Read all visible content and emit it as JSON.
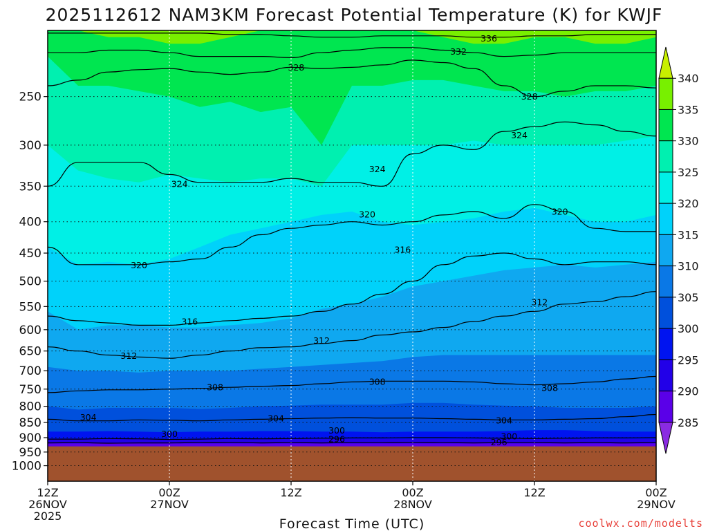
{
  "chart_data": {
    "type": "heatmap",
    "title": "2025112612 NAM3KM Forecast Potential Temperature (K) for KWJF",
    "xlabel": "Forecast Time (UTC)",
    "ylabel": "",
    "y_scale": "log",
    "y_reversed": true,
    "ylim": [
      195,
      1060
    ],
    "y_ticks": [
      "250",
      "300",
      "350",
      "400",
      "450",
      "500",
      "550",
      "600",
      "650",
      "700",
      "750",
      "800",
      "850",
      "900",
      "950",
      "1000"
    ],
    "x_ticks": [
      {
        "hours": 0,
        "line1": "12Z",
        "line2": "26NOV",
        "line3": "2025"
      },
      {
        "hours": 12,
        "line1": "00Z",
        "line2": "27NOV",
        "line3": ""
      },
      {
        "hours": 24,
        "line1": "12Z",
        "line2": "",
        "line3": ""
      },
      {
        "hours": 36,
        "line1": "00Z",
        "line2": "28NOV",
        "line3": ""
      },
      {
        "hours": 48,
        "line1": "12Z",
        "line2": "",
        "line3": ""
      },
      {
        "hours": 60,
        "line1": "00Z",
        "line2": "29NOV",
        "line3": ""
      }
    ],
    "xlim_hours": [
      0,
      60
    ],
    "ground_pressure_hPa": 930,
    "grid": true,
    "colorbar": {
      "position": "right",
      "ticks": [
        "285",
        "290",
        "295",
        "300",
        "305",
        "310",
        "315",
        "320",
        "325",
        "330",
        "335",
        "340"
      ],
      "colors": [
        "#8a2be2",
        "#5a00e8",
        "#2200e8",
        "#0014f0",
        "#0050dc",
        "#0a78e6",
        "#0fa8f0",
        "#00d2fa",
        "#00f0e6",
        "#00f0b0",
        "#00e650",
        "#78f000",
        "#c8f000"
      ]
    },
    "filled_band_edges_K": [
      285,
      290,
      295,
      300,
      305,
      310,
      315,
      320,
      325,
      330,
      335,
      340
    ],
    "field_columns_hours": [
      0,
      3,
      6,
      9,
      12,
      15,
      18,
      21,
      24,
      27,
      30,
      33,
      36,
      39,
      42,
      45,
      48,
      51,
      54,
      57,
      60
    ],
    "field_profiles": [
      {
        "theta_K": [
          290,
          295,
          300,
          305,
          310,
          315,
          320,
          325,
          330,
          335
        ],
        "pressure_hPa": [
          920,
          905,
          880,
          800,
          690,
          560,
          440,
          300,
          215,
          190
        ]
      },
      {
        "theta_K": [
          290,
          295,
          300,
          305,
          310,
          315,
          320,
          325,
          330,
          335
        ],
        "pressure_hPa": [
          920,
          905,
          880,
          810,
          700,
          600,
          470,
          330,
          240,
          195
        ]
      },
      {
        "theta_K": [
          290,
          295,
          300,
          305,
          310,
          315,
          320,
          325,
          330,
          335
        ],
        "pressure_hPa": [
          920,
          905,
          878,
          805,
          700,
          590,
          465,
          340,
          240,
          200
        ]
      },
      {
        "theta_K": [
          290,
          295,
          300,
          305,
          310,
          315,
          320,
          325,
          330,
          335
        ],
        "pressure_hPa": [
          920,
          905,
          880,
          805,
          705,
          590,
          470,
          345,
          245,
          200
        ]
      },
      {
        "theta_K": [
          290,
          295,
          300,
          305,
          310,
          315,
          320,
          325,
          330,
          335
        ],
        "pressure_hPa": [
          920,
          905,
          882,
          805,
          700,
          595,
          460,
          335,
          250,
          205
        ]
      },
      {
        "theta_K": [
          290,
          295,
          300,
          305,
          310,
          315,
          320,
          325,
          330,
          335
        ],
        "pressure_hPa": [
          920,
          905,
          880,
          808,
          700,
          595,
          440,
          340,
          260,
          205
        ]
      },
      {
        "theta_K": [
          290,
          295,
          300,
          305,
          310,
          315,
          320,
          325,
          330,
          335
        ],
        "pressure_hPa": [
          920,
          905,
          880,
          805,
          700,
          590,
          420,
          345,
          255,
          200
        ]
      },
      {
        "theta_K": [
          290,
          295,
          300,
          305,
          310,
          315,
          320,
          325,
          330,
          335
        ],
        "pressure_hPa": [
          920,
          905,
          878,
          800,
          695,
          585,
          410,
          340,
          265,
          195
        ]
      },
      {
        "theta_K": [
          290,
          295,
          300,
          305,
          310,
          315,
          320,
          325,
          330,
          335
        ],
        "pressure_hPa": [
          920,
          905,
          878,
          798,
          690,
          575,
          400,
          340,
          260,
          195
        ]
      },
      {
        "theta_K": [
          290,
          295,
          300,
          305,
          310,
          315,
          320,
          325,
          330,
          335
        ],
        "pressure_hPa": [
          920,
          905,
          880,
          795,
          685,
          555,
          390,
          350,
          300,
          190
        ]
      },
      {
        "theta_K": [
          290,
          295,
          300,
          305,
          310,
          315,
          320,
          325,
          330,
          335
        ],
        "pressure_hPa": [
          920,
          905,
          880,
          795,
          680,
          545,
          385,
          300,
          240,
          190
        ]
      },
      {
        "theta_K": [
          290,
          295,
          300,
          305,
          310,
          315,
          320,
          325,
          330,
          335
        ],
        "pressure_hPa": [
          920,
          905,
          882,
          795,
          675,
          530,
          400,
          300,
          240,
          190
        ]
      },
      {
        "theta_K": [
          290,
          295,
          300,
          305,
          310,
          315,
          320,
          325,
          330,
          335
        ],
        "pressure_hPa": [
          920,
          905,
          880,
          790,
          665,
          510,
          405,
          300,
          235,
          195
        ]
      },
      {
        "theta_K": [
          290,
          295,
          300,
          305,
          310,
          315,
          320,
          325,
          330,
          335
        ],
        "pressure_hPa": [
          920,
          905,
          880,
          790,
          660,
          500,
          400,
          300,
          235,
          200
        ]
      },
      {
        "theta_K": [
          290,
          295,
          300,
          305,
          310,
          315,
          320,
          325,
          330,
          335
        ],
        "pressure_hPa": [
          920,
          905,
          880,
          795,
          660,
          490,
          395,
          295,
          240,
          205
        ]
      },
      {
        "theta_K": [
          290,
          295,
          300,
          305,
          310,
          315,
          320,
          325,
          330,
          335
        ],
        "pressure_hPa": [
          920,
          905,
          878,
          798,
          660,
          480,
          385,
          300,
          245,
          205
        ]
      },
      {
        "theta_K": [
          290,
          295,
          300,
          305,
          310,
          315,
          320,
          325,
          330,
          335
        ],
        "pressure_hPa": [
          920,
          905,
          875,
          800,
          660,
          475,
          380,
          300,
          245,
          200
        ]
      },
      {
        "theta_K": [
          290,
          295,
          300,
          305,
          310,
          315,
          320,
          325,
          330,
          335
        ],
        "pressure_hPa": [
          920,
          905,
          875,
          805,
          660,
          470,
          390,
          300,
          250,
          200
        ]
      },
      {
        "theta_K": [
          290,
          295,
          300,
          305,
          310,
          315,
          320,
          325,
          330,
          335
        ],
        "pressure_hPa": [
          920,
          905,
          878,
          805,
          660,
          475,
          400,
          300,
          245,
          205
        ]
      },
      {
        "theta_K": [
          290,
          295,
          300,
          305,
          310,
          315,
          320,
          325,
          330,
          335
        ],
        "pressure_hPa": [
          920,
          905,
          880,
          805,
          660,
          470,
          400,
          295,
          245,
          205
        ]
      },
      {
        "theta_K": [
          290,
          295,
          300,
          305,
          310,
          315,
          320,
          325,
          330,
          335
        ],
        "pressure_hPa": [
          920,
          905,
          880,
          800,
          660,
          465,
          390,
          290,
          240,
          200
        ]
      }
    ],
    "contour_interval_K": 4,
    "contour_lines": [
      {
        "theta_K": 296,
        "pressure_hPa": [
          918,
          917,
          919,
          918,
          918,
          917,
          916,
          918,
          917,
          918,
          917,
          917,
          916,
          917,
          918,
          917,
          917,
          918,
          917,
          918,
          917
        ]
      },
      {
        "theta_K": 300,
        "pressure_hPa": [
          905,
          905,
          903,
          904,
          906,
          905,
          903,
          904,
          903,
          902,
          901,
          901,
          900,
          900,
          901,
          902,
          903,
          902,
          901,
          901,
          900
        ]
      },
      {
        "theta_K": 304,
        "pressure_hPa": [
          840,
          845,
          845,
          842,
          843,
          845,
          842,
          840,
          838,
          836,
          835,
          836,
          836,
          838,
          840,
          842,
          842,
          840,
          838,
          832,
          825
        ]
      },
      {
        "theta_K": 308,
        "pressure_hPa": [
          760,
          755,
          752,
          752,
          750,
          748,
          745,
          742,
          740,
          735,
          730,
          728,
          728,
          728,
          730,
          735,
          738,
          735,
          730,
          722,
          715
        ]
      },
      {
        "theta_K": 312,
        "pressure_hPa": [
          640,
          650,
          660,
          665,
          668,
          660,
          650,
          642,
          640,
          632,
          625,
          612,
          605,
          595,
          582,
          570,
          560,
          545,
          540,
          530,
          520
        ]
      },
      {
        "theta_K": 316,
        "pressure_hPa": [
          570,
          580,
          585,
          590,
          590,
          585,
          580,
          575,
          570,
          560,
          545,
          525,
          500,
          470,
          455,
          450,
          460,
          470,
          465,
          465,
          470
        ]
      },
      {
        "theta_K": 320,
        "pressure_hPa": [
          440,
          470,
          470,
          470,
          465,
          460,
          440,
          420,
          410,
          405,
          400,
          405,
          400,
          390,
          385,
          395,
          375,
          385,
          410,
          415,
          415
        ]
      },
      {
        "theta_K": 324,
        "pressure_hPa": [
          350,
          320,
          320,
          320,
          335,
          345,
          345,
          345,
          340,
          345,
          345,
          350,
          310,
          300,
          305,
          285,
          280,
          275,
          278,
          285,
          290
        ]
      },
      {
        "theta_K": 328,
        "pressure_hPa": [
          240,
          235,
          228,
          226,
          225,
          228,
          230,
          228,
          224,
          225,
          224,
          222,
          218,
          220,
          225,
          240,
          250,
          245,
          240,
          240,
          242
        ]
      },
      {
        "theta_K": 332,
        "pressure_hPa": [
          212,
          212,
          210,
          210,
          212,
          215,
          215,
          215,
          216,
          212,
          210,
          208,
          208,
          210,
          212,
          215,
          214,
          212,
          212,
          212,
          212
        ]
      },
      {
        "theta_K": 336,
        "pressure_hPa": [
          197,
          197,
          197,
          197,
          197,
          197,
          198,
          198,
          199,
          200,
          200,
          199,
          199,
          199,
          200,
          200,
          199,
          199,
          198,
          198,
          198
        ]
      }
    ],
    "contour_labels": [
      {
        "text": "336",
        "hours": 43.5,
        "pressure_hPa": 201
      },
      {
        "text": "332",
        "hours": 40.5,
        "pressure_hPa": 211
      },
      {
        "text": "328",
        "hours": 24.5,
        "pressure_hPa": 224
      },
      {
        "text": "328",
        "hours": 47.5,
        "pressure_hPa": 250
      },
      {
        "text": "324",
        "hours": 46.5,
        "pressure_hPa": 289
      },
      {
        "text": "324",
        "hours": 32.5,
        "pressure_hPa": 328
      },
      {
        "text": "324",
        "hours": 13,
        "pressure_hPa": 347
      },
      {
        "text": "320",
        "hours": 50.5,
        "pressure_hPa": 385
      },
      {
        "text": "320",
        "hours": 31.5,
        "pressure_hPa": 389
      },
      {
        "text": "320",
        "hours": 9,
        "pressure_hPa": 471
      },
      {
        "text": "316",
        "hours": 35,
        "pressure_hPa": 444
      },
      {
        "text": "316",
        "hours": 14,
        "pressure_hPa": 582
      },
      {
        "text": "312",
        "hours": 48.5,
        "pressure_hPa": 541
      },
      {
        "text": "312",
        "hours": 27,
        "pressure_hPa": 625
      },
      {
        "text": "312",
        "hours": 8,
        "pressure_hPa": 662
      },
      {
        "text": "308",
        "hours": 32.5,
        "pressure_hPa": 729
      },
      {
        "text": "308",
        "hours": 16.5,
        "pressure_hPa": 745
      },
      {
        "text": "308",
        "hours": 49.5,
        "pressure_hPa": 747
      },
      {
        "text": "304",
        "hours": 22.5,
        "pressure_hPa": 837
      },
      {
        "text": "304",
        "hours": 4,
        "pressure_hPa": 834
      },
      {
        "text": "304",
        "hours": 45,
        "pressure_hPa": 843
      },
      {
        "text": "300",
        "hours": 12,
        "pressure_hPa": 887
      },
      {
        "text": "300",
        "hours": 28.5,
        "pressure_hPa": 876
      },
      {
        "text": "300",
        "hours": 45.5,
        "pressure_hPa": 895
      },
      {
        "text": "296",
        "hours": 28.5,
        "pressure_hPa": 905
      },
      {
        "text": "296",
        "hours": 44.5,
        "pressure_hPa": 915
      }
    ],
    "ground_color": "#a0522d",
    "contour_color": "#000000"
  },
  "credit": "coolwx.com/modelts"
}
